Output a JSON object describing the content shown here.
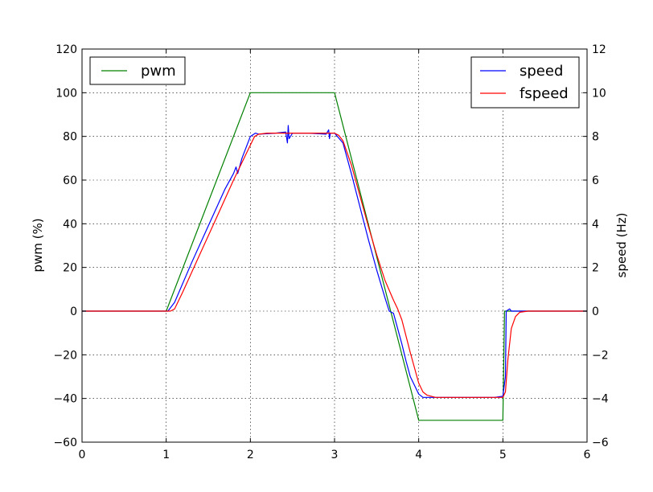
{
  "chart_data": {
    "type": "line",
    "title": "",
    "xlabel": "",
    "ylabel_left": "pwm (%)",
    "ylabel_right": "speed (Hz)",
    "xlim": [
      0,
      6
    ],
    "ylim_left": [
      -60,
      120
    ],
    "ylim_right": [
      -6,
      12
    ],
    "grid": true,
    "x_ticks": [
      "0",
      "1",
      "2",
      "3",
      "4",
      "5",
      "6"
    ],
    "y_left_ticks": [
      "120",
      "100",
      "80",
      "60",
      "40",
      "20",
      "0",
      "−20",
      "−40",
      "−60"
    ],
    "y_right_ticks": [
      "12",
      "10",
      "8",
      "6",
      "4",
      "2",
      "0",
      "−2",
      "−4",
      "−6"
    ],
    "legends": [
      {
        "placement": "top-left",
        "entries": [
          "pwm"
        ]
      },
      {
        "placement": "top-right",
        "entries": [
          "speed",
          "fspeed"
        ]
      }
    ],
    "series": [
      {
        "name": "pwm",
        "axis": "left",
        "color": "#008000",
        "x": [
          0,
          1.0,
          2.0,
          3.0,
          4.0,
          5.0,
          5.02,
          6.0
        ],
        "y": [
          0,
          0,
          100,
          100,
          -50,
          -50,
          0,
          0
        ]
      },
      {
        "name": "speed",
        "axis": "right",
        "color": "#0000ff",
        "x": [
          0,
          1.02,
          1.1,
          1.3,
          1.5,
          1.7,
          1.8,
          1.83,
          1.85,
          1.9,
          2.0,
          2.06,
          2.1,
          2.3,
          2.42,
          2.44,
          2.45,
          2.46,
          2.5,
          2.7,
          2.9,
          2.93,
          2.94,
          2.95,
          3.0,
          3.1,
          3.2,
          3.3,
          3.4,
          3.5,
          3.6,
          3.65,
          3.7,
          3.8,
          3.85,
          3.9,
          4.0,
          4.05,
          4.1,
          4.3,
          4.6,
          4.9,
          5.0,
          5.03,
          5.04,
          5.06,
          5.08,
          5.1,
          5.2,
          6.0
        ],
        "y": [
          0,
          0,
          0.4,
          2.2,
          3.9,
          5.6,
          6.3,
          6.6,
          6.3,
          7.0,
          8.0,
          8.15,
          8.1,
          8.15,
          8.2,
          7.7,
          8.5,
          7.9,
          8.15,
          8.15,
          8.1,
          8.3,
          7.9,
          8.15,
          8.15,
          7.7,
          6.3,
          4.8,
          3.3,
          1.9,
          0.6,
          0.0,
          -0.1,
          -1.5,
          -2.3,
          -3.0,
          -3.8,
          -3.95,
          -3.95,
          -3.95,
          -3.95,
          -3.95,
          -3.9,
          -3.0,
          0.0,
          0.05,
          0.1,
          0.0,
          0.0,
          0.0
        ]
      },
      {
        "name": "fspeed",
        "axis": "right",
        "color": "#ff0000",
        "x": [
          0,
          1.05,
          1.1,
          1.2,
          1.4,
          1.6,
          1.8,
          2.0,
          2.05,
          2.1,
          2.2,
          2.5,
          2.9,
          3.0,
          3.05,
          3.1,
          3.2,
          3.3,
          3.4,
          3.5,
          3.6,
          3.7,
          3.75,
          3.8,
          3.9,
          4.0,
          4.05,
          4.1,
          4.2,
          4.5,
          4.8,
          5.0,
          5.03,
          5.06,
          5.1,
          5.15,
          5.2,
          5.3,
          6.0
        ],
        "y": [
          0,
          0,
          0.1,
          0.9,
          2.6,
          4.3,
          6.0,
          7.6,
          8.0,
          8.1,
          8.15,
          8.15,
          8.15,
          8.15,
          8.05,
          7.8,
          6.7,
          5.3,
          3.9,
          2.6,
          1.4,
          0.5,
          0.1,
          -0.4,
          -1.9,
          -3.3,
          -3.7,
          -3.85,
          -3.95,
          -3.95,
          -3.95,
          -3.95,
          -3.7,
          -2.2,
          -0.8,
          -0.25,
          -0.05,
          0.0,
          0.0
        ]
      }
    ]
  }
}
